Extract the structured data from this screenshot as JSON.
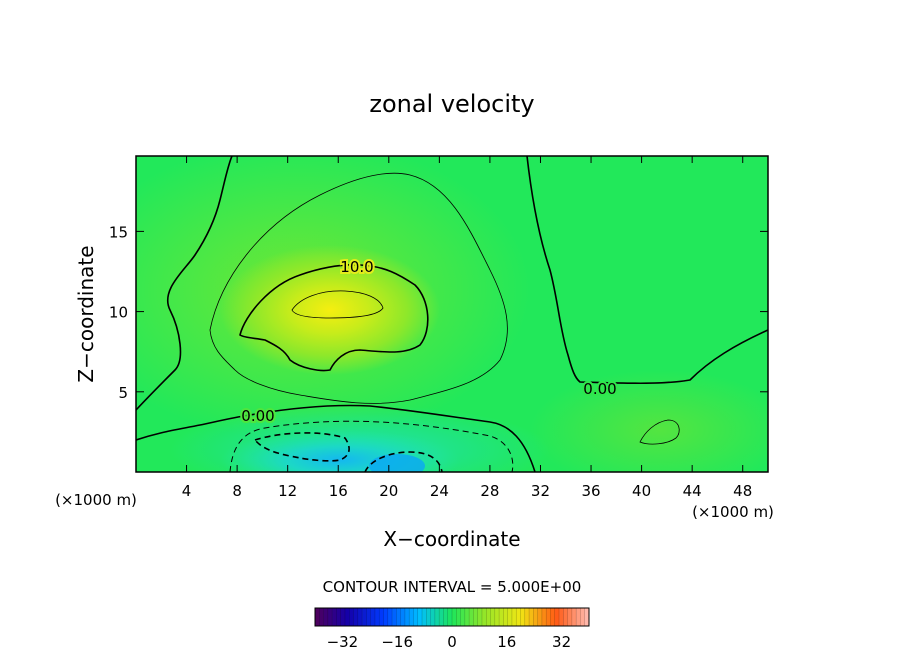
{
  "chart_data": {
    "type": "heatmap",
    "title": "zonal velocity",
    "xlabel": "X−coordinate",
    "ylabel": "Z−coordinate",
    "x_unit_left": "(×1000 m)",
    "x_unit_right": "(×1000 m)",
    "xlim": [
      0,
      50
    ],
    "ylim": [
      0,
      19.7
    ],
    "x_ticks": [
      4,
      8,
      12,
      16,
      20,
      24,
      28,
      32,
      36,
      40,
      44,
      48
    ],
    "x_tick_labels": [
      "4",
      "8",
      "12",
      "16",
      "20",
      "24",
      "28",
      "32",
      "36",
      "40",
      "44",
      "48"
    ],
    "y_ticks": [
      5,
      10,
      15
    ],
    "y_tick_labels": [
      "5",
      "10",
      "15"
    ],
    "contour_interval_text": "CONTOUR INTERVAL = 5.000E+00",
    "contour_interval": 5.0,
    "contour_labels": [
      {
        "text": "10.0",
        "x": 17.5,
        "y": 12.8
      },
      {
        "text": "0.00",
        "x": 9.5,
        "y": 3.5
      },
      {
        "text": "0.00",
        "x": 37.0,
        "y": 5.4
      }
    ],
    "jet_core": {
      "x": 15.5,
      "z": 10.5,
      "max_value": 15
    },
    "negative_region": {
      "x": 20.5,
      "z": 0.5,
      "min_value": -11
    },
    "colorbar": {
      "min": -40,
      "max": 40,
      "ticks": [
        -32,
        -16,
        0,
        16,
        32
      ],
      "tick_labels": [
        "−32",
        "−16",
        "0",
        "16",
        "32"
      ]
    },
    "colors": {
      "background": "#ffffff",
      "axes": "#000000",
      "field_base": "#22e85a"
    }
  }
}
